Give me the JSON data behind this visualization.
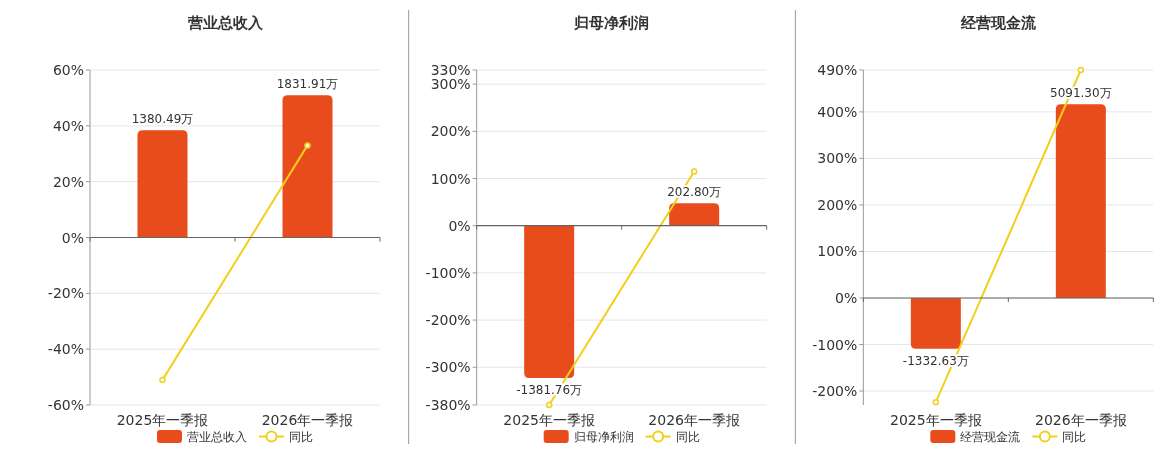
{
  "chart_data": [
    {
      "type": "bar",
      "title": "营业总收入",
      "categories": [
        "2025年一季报",
        "2026年一季报"
      ],
      "series": [
        {
          "name": "营业总收入",
          "color": "#e84b1c",
          "axis": "y2",
          "values": [
            1380.49,
            1831.91
          ],
          "value_labels": [
            "1380.49万",
            "1831.91万"
          ]
        },
        {
          "name": "同比",
          "type": "line",
          "color": "#f2cf1a",
          "values": [
            -51,
            33
          ],
          "marker": "circle"
        }
      ],
      "ylim": [
        -60,
        60
      ],
      "yticks": [
        {
          "value": -60,
          "label": "-60%"
        },
        {
          "value": -40,
          "label": "-40%"
        },
        {
          "value": -20,
          "label": "-20%"
        },
        {
          "value": 0,
          "label": "0%"
        },
        {
          "value": 20,
          "label": "20%"
        },
        {
          "value": 40,
          "label": "40%"
        },
        {
          "value": 60,
          "label": "60%"
        }
      ],
      "grid": "y",
      "legend": "bottom"
    },
    {
      "type": "bar",
      "title": "归母净利润",
      "categories": [
        "2025年一季报",
        "2026年一季报"
      ],
      "series": [
        {
          "name": "归母净利润",
          "color": "#e84b1c",
          "axis": "y2",
          "values": [
            -1381.76,
            202.8
          ],
          "value_labels": [
            "-1381.76万",
            "202.80万"
          ]
        },
        {
          "name": "同比",
          "type": "line",
          "color": "#f2cf1a",
          "values": [
            -380,
            115
          ],
          "marker": "circle"
        }
      ],
      "ylim": [
        -380,
        330
      ],
      "yticks": [
        {
          "value": -380,
          "label": "-380%"
        },
        {
          "value": -300,
          "label": "-300%"
        },
        {
          "value": -200,
          "label": "-200%"
        },
        {
          "value": -100,
          "label": "-100%"
        },
        {
          "value": 0,
          "label": "0%"
        },
        {
          "value": 100,
          "label": "100%"
        },
        {
          "value": 200,
          "label": "200%"
        },
        {
          "value": 300,
          "label": "300%"
        },
        {
          "value": 330,
          "label": "330%"
        }
      ],
      "grid": "y",
      "legend": "bottom"
    },
    {
      "type": "bar",
      "title": "经营现金流",
      "categories": [
        "2025年一季报",
        "2026年一季报"
      ],
      "series": [
        {
          "name": "经营现金流",
          "color": "#e84b1c",
          "axis": "y2",
          "values": [
            -1332.63,
            5091.3
          ],
          "value_labels": [
            "-1332.63万",
            "5091.30万"
          ]
        },
        {
          "name": "同比",
          "type": "line",
          "color": "#f2cf1a",
          "values": [
            -224,
            490
          ],
          "marker": "circle"
        }
      ],
      "ylim": [
        -230,
        490
      ],
      "yticks": [
        {
          "value": -200,
          "label": "-200%"
        },
        {
          "value": -100,
          "label": "-100%"
        },
        {
          "value": 0,
          "label": "0%"
        },
        {
          "value": 100,
          "label": "100%"
        },
        {
          "value": 200,
          "label": "200%"
        },
        {
          "value": 300,
          "label": "300%"
        },
        {
          "value": 400,
          "label": "400%"
        },
        {
          "value": 490,
          "label": "490%"
        }
      ],
      "grid": "y",
      "legend": "bottom"
    }
  ]
}
